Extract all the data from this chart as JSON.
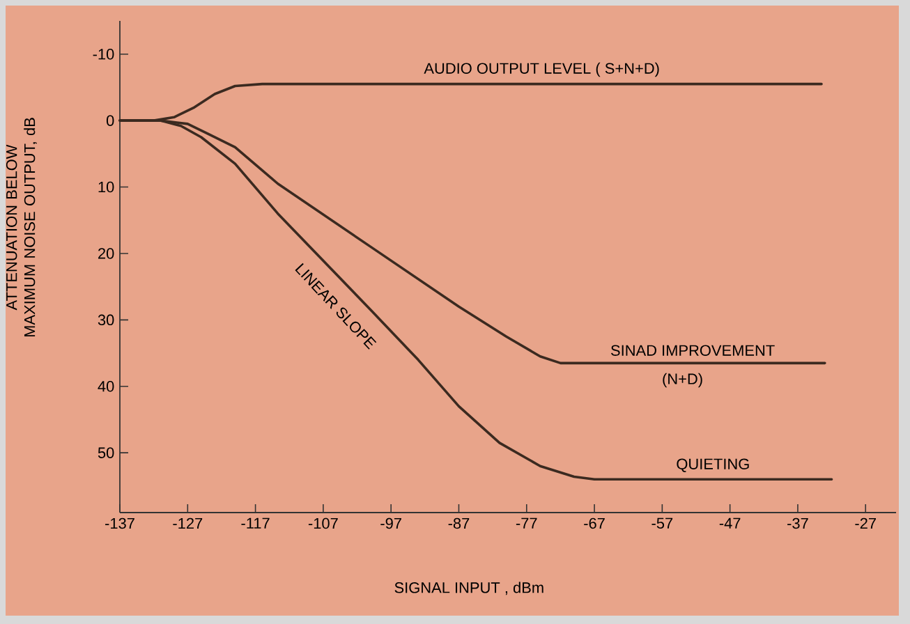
{
  "chart_data": {
    "type": "line",
    "xlabel": "SIGNAL INPUT , dBm",
    "ylabel": "ATTENUATION BELOW MAXIMUM NOISE OUTPUT, dB",
    "xlim": [
      -137,
      -22.5
    ],
    "ylim": [
      59,
      -15
    ],
    "xticks": [
      -137,
      -127,
      -117,
      -107,
      -97,
      -87,
      -77,
      -67,
      -57,
      -47,
      -37,
      -27
    ],
    "yticks": [
      -10,
      0,
      10,
      20,
      30,
      40,
      50
    ],
    "series": [
      {
        "name": "AUDIO OUTPUT LEVEL ( S+N+D)",
        "color": "#3b2a20",
        "x": [
          -137,
          -132,
          -129,
          -126,
          -123,
          -120,
          -116,
          -33.5
        ],
        "values": [
          0,
          0,
          -0.5,
          -2,
          -4,
          -5.2,
          -5.5,
          -5.5
        ]
      },
      {
        "name": "SINAD IMPROVEMENT",
        "color": "#3b2a20",
        "x": [
          -137,
          -131,
          -127,
          -124,
          -120,
          -113.7,
          -100,
          -87,
          -80,
          -75,
          -72,
          -33
        ],
        "values": [
          0,
          0,
          0.5,
          2,
          4,
          9.5,
          19,
          28,
          32.5,
          35.5,
          36.5,
          36.5
        ]
      },
      {
        "name": "QUIETING",
        "color": "#3b2a20",
        "x": [
          -137,
          -131,
          -128,
          -125,
          -120,
          -113.7,
          -100,
          -93,
          -87,
          -81,
          -75,
          -70,
          -67,
          -32
        ],
        "values": [
          0,
          0,
          0.8,
          2.5,
          6.5,
          14,
          28.5,
          36,
          43,
          48.5,
          52,
          53.6,
          54,
          54
        ]
      }
    ],
    "annotations": [
      "LINEAR SLOPE",
      {
        "text": "(N+D)",
        "x": -54,
        "y": 36.5
      }
    ]
  }
}
